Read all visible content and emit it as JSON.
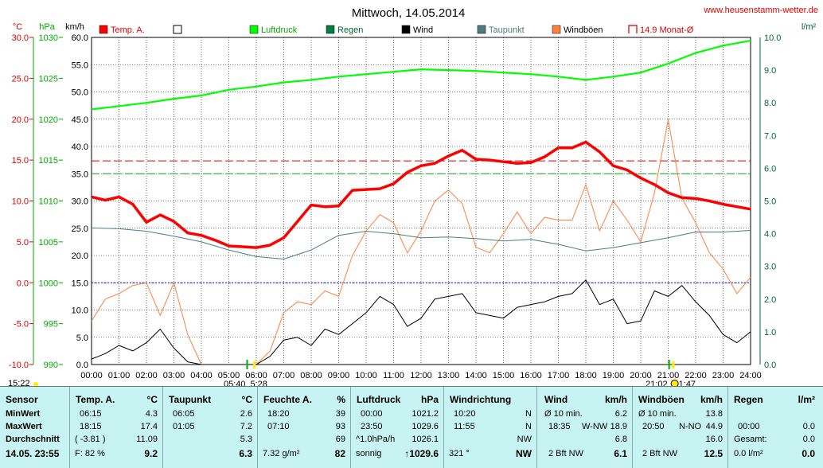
{
  "chart_data": {
    "type": "line",
    "title": "Mittwoch, 14.05.2014",
    "source_label": "www.heusenstamm-wetter.de",
    "axes": {
      "temperature": {
        "unit": "°C",
        "range": [
          -10,
          30
        ],
        "ticks": [
          "30.0",
          "25.0",
          "20.0",
          "15.0",
          "10.0",
          "5.0",
          "0.0",
          "-5.0",
          "-10.0"
        ]
      },
      "pressure": {
        "unit": "hPa",
        "range": [
          990,
          1030
        ],
        "ticks": [
          "1030",
          "1025",
          "1020",
          "1015",
          "1010",
          "1005",
          "1000",
          "995",
          "990"
        ]
      },
      "wind": {
        "unit": "km/h",
        "range": [
          0,
          60
        ],
        "ticks": [
          "60.0",
          "55.0",
          "50.0",
          "45.0",
          "40.0",
          "35.0",
          "30.0",
          "25.0",
          "20.0",
          "15.0",
          "10.0",
          "5.0",
          "0.0"
        ]
      },
      "rain": {
        "unit": "l/m²",
        "range": [
          0,
          10
        ],
        "ticks": [
          "10.0",
          "9.0",
          "8.0",
          "7.0",
          "6.0",
          "5.0",
          "4.0",
          "3.0",
          "2.0",
          "1.0",
          "0.0"
        ]
      }
    },
    "x_ticks": [
      "00:00",
      "01:00",
      "02:00",
      "03:00",
      "04:00",
      "05:00",
      "06:00",
      "07:00",
      "08:00",
      "09:00",
      "10:00",
      "11:00",
      "12:00",
      "13:00",
      "14:00",
      "15:00",
      "16:00",
      "17:00",
      "18:00",
      "19:00",
      "20:00",
      "21:00",
      "22:00",
      "23:00",
      "24:00"
    ],
    "legend": [
      {
        "name": "Temp. A.",
        "color": "#ff0000",
        "style": "filled"
      },
      {
        "name": "",
        "color": "#000000",
        "style": "empty"
      },
      {
        "name": "Luftdruck",
        "color": "#00ff00",
        "style": "filled"
      },
      {
        "name": "Regen",
        "color": "#008040",
        "style": "filled"
      },
      {
        "name": "Wind",
        "color": "#000000",
        "style": "filled"
      },
      {
        "name": "Taupunkt",
        "color": "#4c7c7c",
        "style": "filled"
      },
      {
        "name": "Windböen",
        "color": "#ff8040",
        "style": "filled"
      },
      {
        "name": "14.9 Monat-Ø",
        "color": "#cc0000",
        "style": "dashed"
      }
    ],
    "reference_lines": [
      {
        "label": "Monat-Ø",
        "axis": "temperature",
        "value": 14.9,
        "color": "#cc0000"
      },
      {
        "axis": "wind",
        "value": 35,
        "color": "#00aa00"
      },
      {
        "axis": "temperature",
        "value": 0,
        "color": "#0000cc"
      }
    ],
    "sun_times": {
      "sunrise": "05:40",
      "sunrise2": "5:28",
      "sunset": "21:02",
      "sunset2": "1:47"
    },
    "current_time": "15:22",
    "series": [
      {
        "name": "Temp. A.",
        "axis": "temperature",
        "color": "#ff0000",
        "x": [
          0,
          0.5,
          1,
          1.5,
          2,
          2.5,
          3,
          3.5,
          4,
          4.5,
          5,
          5.5,
          6,
          6.5,
          7,
          7.5,
          8,
          8.5,
          9,
          9.5,
          10,
          10.5,
          11,
          11.5,
          12,
          12.5,
          13,
          13.5,
          14,
          14.5,
          15,
          15.5,
          16,
          16.5,
          17,
          17.5,
          18,
          18.5,
          19,
          19.5,
          20,
          20.5,
          21,
          21.5,
          22,
          22.5,
          23,
          23.5,
          24
        ],
        "values": [
          10.5,
          10.1,
          10.5,
          9.6,
          7.4,
          8.3,
          7.5,
          6.1,
          5.8,
          5.2,
          4.5,
          4.4,
          4.3,
          4.6,
          5.5,
          7.5,
          9.5,
          9.3,
          9.4,
          11.3,
          11.4,
          11.5,
          12.1,
          13.5,
          14.3,
          14.6,
          15.5,
          16.2,
          15.1,
          15.0,
          14.8,
          14.6,
          14.7,
          15.4,
          16.5,
          16.5,
          17.2,
          16.0,
          14.3,
          13.8,
          12.8,
          12.0,
          11.0,
          10.4,
          10.3,
          10.0,
          9.6,
          9.3,
          9.0
        ]
      },
      {
        "name": "Luftdruck",
        "axis": "pressure",
        "color": "#00ff00",
        "x": [
          0,
          1,
          2,
          3,
          4,
          5,
          6,
          7,
          8,
          9,
          10,
          11,
          12,
          13,
          14,
          15,
          16,
          17,
          18,
          19,
          20,
          21,
          22,
          23,
          24
        ],
        "values": [
          1021.2,
          1021.6,
          1022.0,
          1022.5,
          1022.9,
          1023.6,
          1024.0,
          1024.5,
          1024.8,
          1025.2,
          1025.5,
          1025.8,
          1026.1,
          1026.0,
          1025.9,
          1025.7,
          1025.5,
          1025.2,
          1024.8,
          1025.2,
          1025.7,
          1026.8,
          1028.1,
          1029.0,
          1029.6
        ]
      },
      {
        "name": "Taupunkt",
        "axis": "temperature",
        "color": "#4c7c7c",
        "x": [
          0,
          1,
          2,
          3,
          4,
          5,
          6,
          7,
          8,
          9,
          10,
          11,
          12,
          13,
          14,
          15,
          16,
          17,
          18,
          19,
          20,
          21,
          22,
          23,
          24
        ],
        "values": [
          6.7,
          6.6,
          6.3,
          5.7,
          5.0,
          4.0,
          3.2,
          2.9,
          4.0,
          5.8,
          6.3,
          6.0,
          5.5,
          5.6,
          5.4,
          5.1,
          5.3,
          4.7,
          3.9,
          4.3,
          4.9,
          5.5,
          6.2,
          6.2,
          6.4
        ]
      },
      {
        "name": "Wind",
        "axis": "wind",
        "color": "#000000",
        "x": [
          0,
          0.5,
          1,
          1.5,
          2,
          2.5,
          3,
          3.5,
          4,
          4.5,
          5,
          5.5,
          6,
          6.5,
          7,
          7.5,
          8,
          8.5,
          9,
          9.5,
          10,
          10.5,
          11,
          11.5,
          12,
          12.5,
          13,
          13.5,
          14,
          14.5,
          15,
          15.5,
          16,
          16.5,
          17,
          17.5,
          18,
          18.5,
          19,
          19.5,
          20,
          20.5,
          21,
          21.5,
          22,
          22.5,
          23,
          23.5,
          24
        ],
        "values": [
          1.0,
          2.0,
          3.5,
          2.5,
          4.0,
          6.5,
          3.0,
          0.5,
          0,
          0,
          0,
          0,
          0,
          1.5,
          4.5,
          5.0,
          3.5,
          6.5,
          5.5,
          7.5,
          9.5,
          12.5,
          11.0,
          7.0,
          8.5,
          12.0,
          12.5,
          13.0,
          9.5,
          9.0,
          8.5,
          10.5,
          11.0,
          11.5,
          12.5,
          13.0,
          15.5,
          11.0,
          12.0,
          7.5,
          8.0,
          13.5,
          12.5,
          14.5,
          11.5,
          9.0,
          5.5,
          4.0,
          6.0
        ]
      },
      {
        "name": "Windböen",
        "axis": "wind",
        "color": "#ff8040",
        "x": [
          0,
          0.5,
          1,
          1.5,
          2,
          2.5,
          3,
          3.5,
          4,
          4.5,
          5,
          5.5,
          6,
          6.5,
          7,
          7.5,
          8,
          8.5,
          9,
          9.5,
          10,
          10.5,
          11,
          11.5,
          12,
          12.5,
          13,
          13.5,
          14,
          14.5,
          15,
          15.5,
          16,
          16.5,
          17,
          17.5,
          18,
          18.5,
          19,
          19.5,
          20,
          20.5,
          21,
          21.5,
          22,
          22.5,
          23,
          23.5,
          24
        ],
        "values": [
          8.0,
          12.0,
          13.0,
          14.5,
          15.0,
          9.0,
          15.0,
          5.5,
          0,
          0,
          0,
          0,
          0,
          2.5,
          9.5,
          11.5,
          11.0,
          13.5,
          12.5,
          20.0,
          24.5,
          27.5,
          26.0,
          20.5,
          24.5,
          30.0,
          32.0,
          29.5,
          21.5,
          20.5,
          24.0,
          28.0,
          24.0,
          27.0,
          26.5,
          26.5,
          33.0,
          24.5,
          30.0,
          26.5,
          22.5,
          31.5,
          44.9,
          30.5,
          26.0,
          20.5,
          17.5,
          13.0,
          16.0
        ]
      }
    ]
  },
  "stats": {
    "sensor": {
      "header": "Sensor",
      "rows": [
        "MinWert",
        "MaxWert",
        "Durchschnitt"
      ],
      "date": "14.05. 23:55"
    },
    "temp": {
      "header": "Temp. A.",
      "unit": "°C",
      "min_time": "06:15",
      "min": "4.3",
      "max_time": "18:15",
      "max": "17.4",
      "avg_note": "( -3.81 )",
      "avg": "11.09",
      "foot_left": "F: 82 %",
      "foot": "9.2"
    },
    "dew": {
      "header": "Taupunkt",
      "unit": "°C",
      "min_time": "06:05",
      "min": "2.6",
      "max_time": "01:05",
      "max": "7.2",
      "avg": "5.3",
      "foot": "6.3"
    },
    "hum": {
      "header": "Feuchte A.",
      "unit": "%",
      "min_time": "18:20",
      "min": "39",
      "max_time": "07:10",
      "max": "93",
      "avg": "69",
      "foot_left": "7.32 g/m²",
      "foot": "82"
    },
    "press": {
      "header": "Luftdruck",
      "unit": "hPa",
      "min_time": "00:00",
      "min": "1021.2",
      "max_time": "23:50",
      "max": "1029.6",
      "avg_note": "^1.0hPa/h",
      "avg": "1026.1",
      "foot_left": "sonnig",
      "foot": "↑1029.6"
    },
    "dir": {
      "header": "Windrichtung",
      "min_time": "10:20",
      "min": "N",
      "max_time": "11:55",
      "max": "N",
      "avg": "NW",
      "foot_left": "321 °",
      "foot": "NW"
    },
    "wind": {
      "header": "Wind",
      "unit": "km/h",
      "min_time": "Ø 10 min.",
      "min": "6.2",
      "max_time": "18:35",
      "max_dir": "W-NW",
      "max": "18.9",
      "avg": "6.8",
      "foot_left": "2 Bft NW",
      "foot": "6.1"
    },
    "gust": {
      "header": "Windböen",
      "unit": "km/h",
      "min_time": "Ø 10 min.",
      "min": "13.8",
      "max_time": "20:50",
      "max_dir": "N-NO",
      "max": "44.9",
      "avg": "16.0",
      "foot_left": "2 Bft NW",
      "foot": "12.5"
    },
    "rain": {
      "header": "Regen",
      "unit": "l/m²",
      "max_time": "00:00",
      "max": "0.0",
      "avg_label": "Gesamt:",
      "avg": "0.0",
      "foot_left": "0.0 l/m²",
      "foot": "0.0"
    }
  }
}
